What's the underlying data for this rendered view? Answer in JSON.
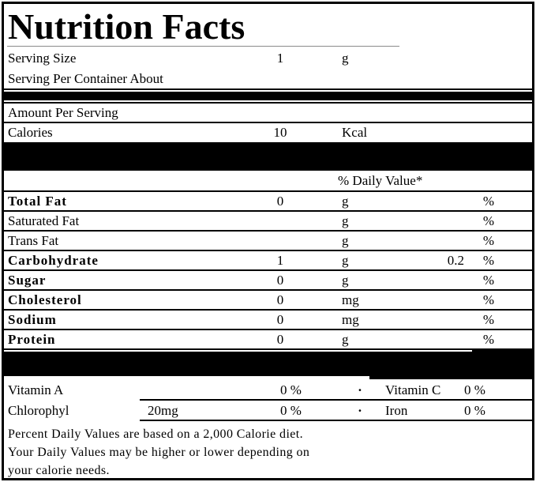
{
  "colors": {
    "background": "#ffffff",
    "text": "#000000",
    "separator_bar": "#000000"
  },
  "label": {
    "title": "Nutrition Facts",
    "serving": {
      "size_label": "Serving Size",
      "size_value": "1",
      "size_unit": "g",
      "per_container_label": "Serving Per Container About"
    },
    "amount_per_serving_label": "Amount Per Serving",
    "calories": {
      "label": "Calories",
      "value": "10",
      "unit": "Kcal"
    },
    "daily_value_header": "% Daily Value*",
    "nutrients": [
      {
        "name": "Total Fat",
        "bold": true,
        "value": "0",
        "unit": "g",
        "extra": "",
        "pct": "%"
      },
      {
        "name": "Saturated Fat",
        "bold": false,
        "value": "",
        "unit": "g",
        "extra": "",
        "pct": "%"
      },
      {
        "name": "Trans Fat",
        "bold": false,
        "value": "",
        "unit": "g",
        "extra": "",
        "pct": "%"
      },
      {
        "name": "Carbohydrate",
        "bold": true,
        "value": "1",
        "unit": "g",
        "extra": "0.2",
        "pct": "%"
      },
      {
        "name": "Sugar",
        "bold": true,
        "value": "0",
        "unit": "g",
        "extra": "",
        "pct": "%"
      },
      {
        "name": "Cholesterol",
        "bold": true,
        "value": "0",
        "unit": "mg",
        "extra": "",
        "pct": "%"
      },
      {
        "name": "Sodium",
        "bold": true,
        "value": "0",
        "unit": "mg",
        "extra": "",
        "pct": "%"
      },
      {
        "name": "Protein",
        "bold": true,
        "value": "0",
        "unit": "g",
        "extra": "",
        "pct": "%"
      }
    ],
    "micronutrients": [
      {
        "name": "Vitamin A",
        "amount": "",
        "pct": "0 %",
        "bullet": "·",
        "name2": "Vitamin C",
        "pct2": "0 %"
      },
      {
        "name": "Chlorophyl",
        "amount": "20mg",
        "pct": "0 %",
        "bullet": "·",
        "name2": "Iron",
        "pct2": "0 %"
      }
    ],
    "footnotes": [
      "Percent Daily Values are based on a 2,000 Calorie diet.",
      "Your Daily Values may be higher or lower depending on",
      "your calorie needs."
    ]
  }
}
